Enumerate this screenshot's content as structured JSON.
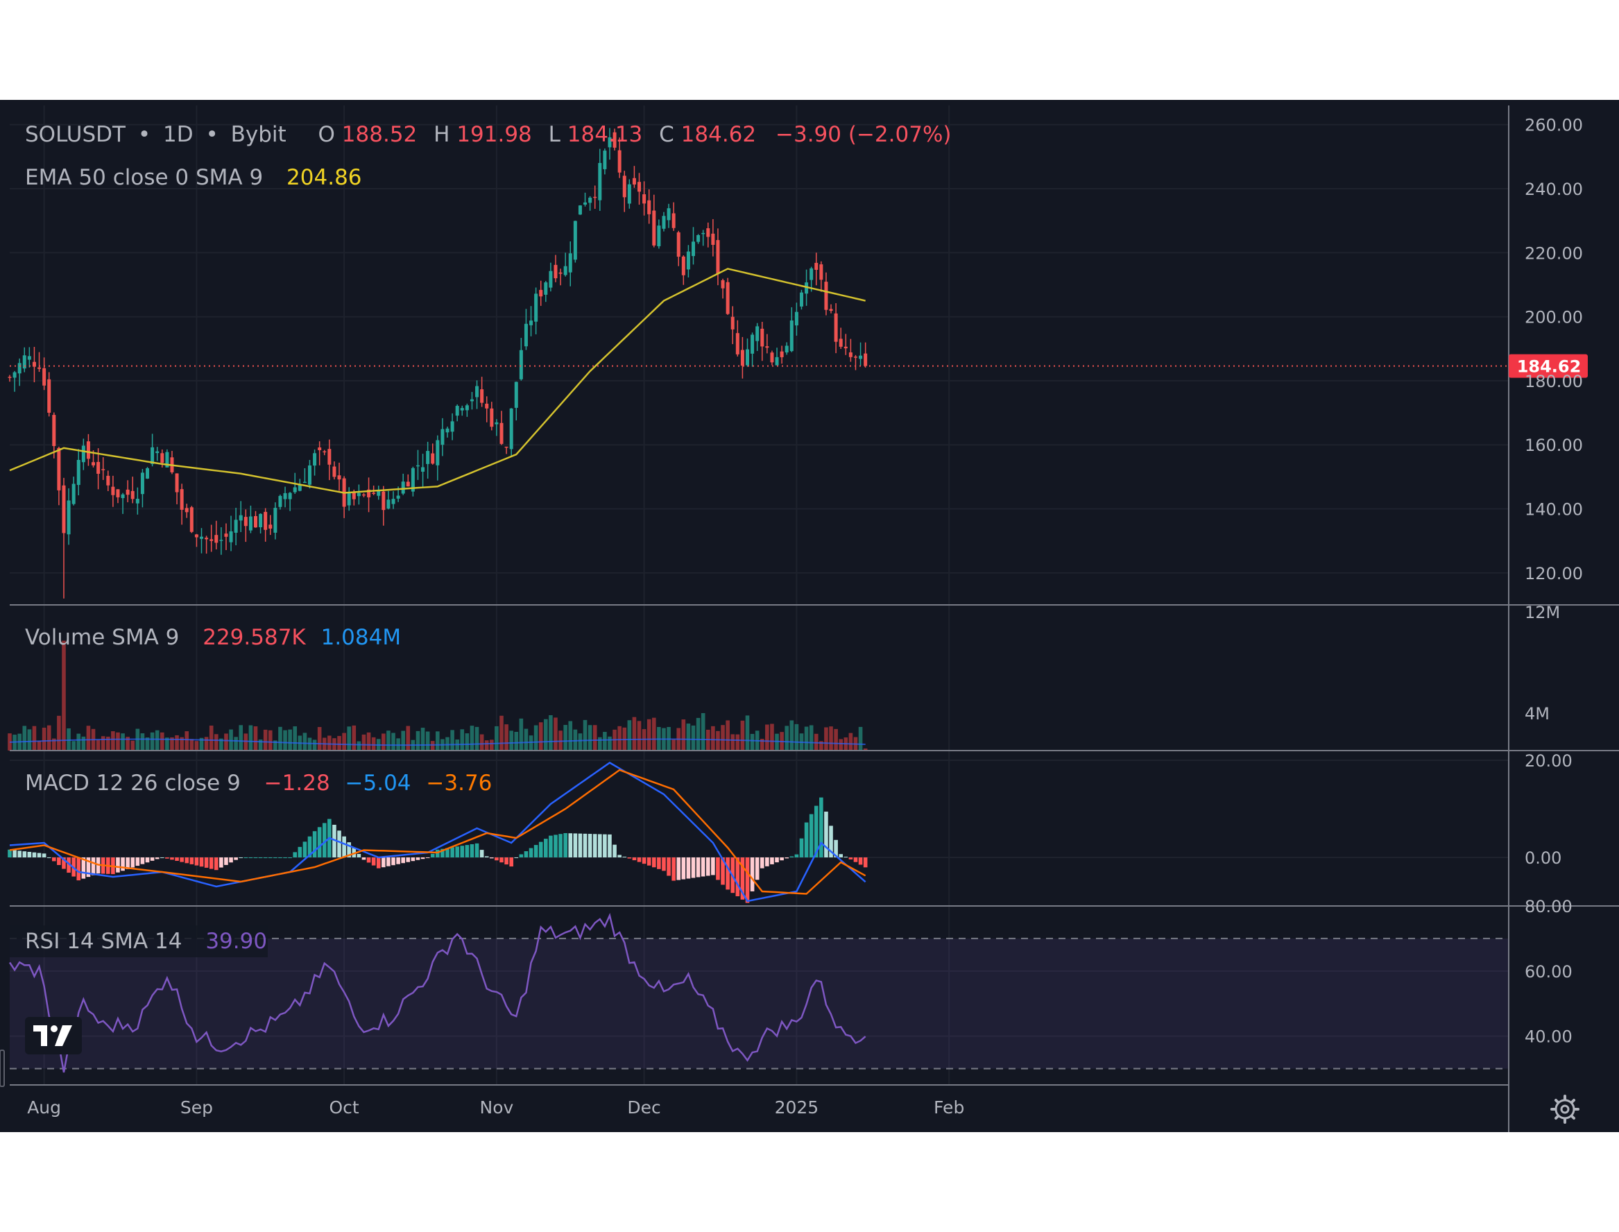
{
  "legend": {
    "symbol": "SOLUSDT",
    "interval": "1D",
    "exchange": "Bybit",
    "dot": "•",
    "o_label": "O",
    "o_value": "188.52",
    "h_label": "H",
    "h_value": "191.98",
    "l_label": "L",
    "l_value": "184.13",
    "c_label": "C",
    "c_value": "184.62",
    "change": "−3.90 (−2.07%)",
    "ema_label": "EMA 50 close 0 SMA 9",
    "ema_value": "204.86"
  },
  "price_badge": "184.62",
  "volume_legend": {
    "label": "Volume SMA 9",
    "value1": "229.587K",
    "value2": "1.084M"
  },
  "macd_legend": {
    "label": "MACD 12 26 close 9",
    "hist": "−1.28",
    "macd": "−5.04",
    "signal": "−3.76"
  },
  "rsi_legend": {
    "label": "RSI 14 SMA 14",
    "value": "39.90"
  },
  "price_axis": [
    "260.00",
    "240.00",
    "220.00",
    "200.00",
    "180.00",
    "160.00",
    "140.00",
    "120.00"
  ],
  "volume_axis": [
    "12M",
    "4M"
  ],
  "macd_axis": [
    "20.00",
    "0.00"
  ],
  "rsi_axis": [
    "80.00",
    "60.00",
    "40.00"
  ],
  "time_axis": [
    "Aug",
    "Sep",
    "Oct",
    "Nov",
    "Dec",
    "2025",
    "Feb"
  ],
  "icons": {
    "logo": "tradingview-logo-icon",
    "settings": "gear-icon"
  },
  "colors": {
    "background": "#131722",
    "up": "#26a69a",
    "down": "#ef5350",
    "ema": "#d4c22e",
    "macd": "#2962ff",
    "signal": "#ff6d00",
    "rsi": "#7e57c2",
    "text": "#b2b5be"
  },
  "chart_data": [
    {
      "type": "candlestick",
      "symbol": "SOLUSDT",
      "interval": "1D",
      "ylim": [
        110,
        266
      ],
      "ohlc_last": {
        "open": 188.52,
        "high": 191.98,
        "low": 184.13,
        "close": 184.62
      },
      "close_series": [
        {
          "date": "2024-07-25",
          "close": 181
        },
        {
          "date": "2024-07-28",
          "close": 187
        },
        {
          "date": "2024-07-31",
          "close": 186
        },
        {
          "date": "2024-08-02",
          "close": 172
        },
        {
          "date": "2024-08-05",
          "close": 134
        },
        {
          "date": "2024-08-08",
          "close": 158
        },
        {
          "date": "2024-08-11",
          "close": 155
        },
        {
          "date": "2024-08-14",
          "close": 147
        },
        {
          "date": "2024-08-17",
          "close": 144
        },
        {
          "date": "2024-08-20",
          "close": 146
        },
        {
          "date": "2024-08-23",
          "close": 159
        },
        {
          "date": "2024-08-26",
          "close": 156
        },
        {
          "date": "2024-08-29",
          "close": 140
        },
        {
          "date": "2024-09-01",
          "close": 133
        },
        {
          "date": "2024-09-04",
          "close": 129
        },
        {
          "date": "2024-09-07",
          "close": 131
        },
        {
          "date": "2024-09-10",
          "close": 138
        },
        {
          "date": "2024-09-13",
          "close": 136
        },
        {
          "date": "2024-09-16",
          "close": 135
        },
        {
          "date": "2024-09-19",
          "close": 145
        },
        {
          "date": "2024-09-22",
          "close": 148
        },
        {
          "date": "2024-09-25",
          "close": 156
        },
        {
          "date": "2024-09-28",
          "close": 156
        },
        {
          "date": "2024-10-01",
          "close": 142
        },
        {
          "date": "2024-10-04",
          "close": 143
        },
        {
          "date": "2024-10-07",
          "close": 145
        },
        {
          "date": "2024-10-10",
          "close": 141
        },
        {
          "date": "2024-10-13",
          "close": 148
        },
        {
          "date": "2024-10-16",
          "close": 154
        },
        {
          "date": "2024-10-19",
          "close": 157
        },
        {
          "date": "2024-10-22",
          "close": 168
        },
        {
          "date": "2024-10-25",
          "close": 174
        },
        {
          "date": "2024-10-28",
          "close": 176
        },
        {
          "date": "2024-10-31",
          "close": 168
        },
        {
          "date": "2024-11-03",
          "close": 160
        },
        {
          "date": "2024-11-06",
          "close": 190
        },
        {
          "date": "2024-11-09",
          "close": 205
        },
        {
          "date": "2024-11-12",
          "close": 215
        },
        {
          "date": "2024-11-15",
          "close": 215
        },
        {
          "date": "2024-11-18",
          "close": 236
        },
        {
          "date": "2024-11-21",
          "close": 240
        },
        {
          "date": "2024-11-24",
          "close": 256
        },
        {
          "date": "2024-11-27",
          "close": 238
        },
        {
          "date": "2024-11-30",
          "close": 240
        },
        {
          "date": "2024-12-03",
          "close": 225
        },
        {
          "date": "2024-12-06",
          "close": 236
        },
        {
          "date": "2024-12-09",
          "close": 214
        },
        {
          "date": "2024-12-12",
          "close": 227
        },
        {
          "date": "2024-12-15",
          "close": 222
        },
        {
          "date": "2024-12-18",
          "close": 198
        },
        {
          "date": "2024-12-21",
          "close": 187
        },
        {
          "date": "2024-12-24",
          "close": 196
        },
        {
          "date": "2024-12-27",
          "close": 187
        },
        {
          "date": "2024-12-30",
          "close": 190
        },
        {
          "date": "2025-01-02",
          "close": 208
        },
        {
          "date": "2025-01-05",
          "close": 216
        },
        {
          "date": "2025-01-07",
          "close": 205
        },
        {
          "date": "2025-01-10",
          "close": 189
        },
        {
          "date": "2025-01-13",
          "close": 186
        },
        {
          "date": "2025-01-15",
          "close": 184.62
        }
      ],
      "ema": [
        {
          "date": "2024-07-25",
          "value": 152
        },
        {
          "date": "2024-08-05",
          "value": 159
        },
        {
          "date": "2024-08-25",
          "value": 154
        },
        {
          "date": "2024-09-10",
          "value": 151
        },
        {
          "date": "2024-10-01",
          "value": 145
        },
        {
          "date": "2024-10-20",
          "value": 147
        },
        {
          "date": "2024-11-05",
          "value": 157
        },
        {
          "date": "2024-11-20",
          "value": 183
        },
        {
          "date": "2024-12-05",
          "value": 205
        },
        {
          "date": "2024-12-18",
          "value": 215
        },
        {
          "date": "2025-01-01",
          "value": 210
        },
        {
          "date": "2025-01-15",
          "value": 205
        }
      ]
    },
    {
      "type": "bar",
      "name": "Volume",
      "ylim": [
        0,
        15000000
      ],
      "sma9": 1084000,
      "last": 229587,
      "peak_date": "2024-08-05",
      "peak_value": 12000000
    },
    {
      "type": "line",
      "name": "MACD 12 26 close 9",
      "ylim": [
        -10,
        22
      ],
      "last": {
        "macd": -5.04,
        "signal": -3.76,
        "histogram": -1.28
      },
      "macd": [
        {
          "date": "2024-07-25",
          "value": 2.5
        },
        {
          "date": "2024-08-01",
          "value": 3
        },
        {
          "date": "2024-08-08",
          "value": -3
        },
        {
          "date": "2024-08-15",
          "value": -4
        },
        {
          "date": "2024-08-25",
          "value": -3
        },
        {
          "date": "2024-09-05",
          "value": -6
        },
        {
          "date": "2024-09-20",
          "value": -3
        },
        {
          "date": "2024-09-28",
          "value": 4
        },
        {
          "date": "2024-10-08",
          "value": 0
        },
        {
          "date": "2024-10-18",
          "value": 1
        },
        {
          "date": "2024-10-28",
          "value": 6
        },
        {
          "date": "2024-11-04",
          "value": 3
        },
        {
          "date": "2024-11-12",
          "value": 11
        },
        {
          "date": "2024-11-24",
          "value": 19.5
        },
        {
          "date": "2024-12-05",
          "value": 13
        },
        {
          "date": "2024-12-15",
          "value": 3
        },
        {
          "date": "2024-12-22",
          "value": -9
        },
        {
          "date": "2025-01-01",
          "value": -7
        },
        {
          "date": "2025-01-06",
          "value": 3
        },
        {
          "date": "2025-01-15",
          "value": -5.04
        }
      ],
      "signal": [
        {
          "date": "2024-07-25",
          "value": 1.5
        },
        {
          "date": "2024-08-01",
          "value": 2.5
        },
        {
          "date": "2024-08-12",
          "value": -1.5
        },
        {
          "date": "2024-08-25",
          "value": -3
        },
        {
          "date": "2024-09-10",
          "value": -5
        },
        {
          "date": "2024-09-25",
          "value": -2
        },
        {
          "date": "2024-10-05",
          "value": 1.5
        },
        {
          "date": "2024-10-20",
          "value": 1
        },
        {
          "date": "2024-10-30",
          "value": 5
        },
        {
          "date": "2024-11-05",
          "value": 4
        },
        {
          "date": "2024-11-15",
          "value": 10
        },
        {
          "date": "2024-11-26",
          "value": 18
        },
        {
          "date": "2024-12-07",
          "value": 14
        },
        {
          "date": "2024-12-18",
          "value": 2
        },
        {
          "date": "2024-12-25",
          "value": -7
        },
        {
          "date": "2025-01-03",
          "value": -7.5
        },
        {
          "date": "2025-01-10",
          "value": -1
        },
        {
          "date": "2025-01-15",
          "value": -3.76
        }
      ]
    },
    {
      "type": "line",
      "name": "RSI 14 SMA 14",
      "ylim": [
        25,
        80
      ],
      "bands": [
        70,
        30
      ],
      "last": 39.9,
      "rsi": [
        {
          "date": "2024-07-25",
          "value": 62
        },
        {
          "date": "2024-07-31",
          "value": 60
        },
        {
          "date": "2024-08-05",
          "value": 30
        },
        {
          "date": "2024-08-09",
          "value": 50
        },
        {
          "date": "2024-08-13",
          "value": 43
        },
        {
          "date": "2024-08-20",
          "value": 44
        },
        {
          "date": "2024-08-26",
          "value": 59
        },
        {
          "date": "2024-09-01",
          "value": 40
        },
        {
          "date": "2024-09-06",
          "value": 37
        },
        {
          "date": "2024-09-14",
          "value": 42
        },
        {
          "date": "2024-09-20",
          "value": 47
        },
        {
          "date": "2024-09-28",
          "value": 62
        },
        {
          "date": "2024-10-04",
          "value": 43
        },
        {
          "date": "2024-10-10",
          "value": 45
        },
        {
          "date": "2024-10-16",
          "value": 55
        },
        {
          "date": "2024-10-24",
          "value": 72
        },
        {
          "date": "2024-10-31",
          "value": 54
        },
        {
          "date": "2024-11-05",
          "value": 45
        },
        {
          "date": "2024-11-10",
          "value": 72
        },
        {
          "date": "2024-11-16",
          "value": 71
        },
        {
          "date": "2024-11-24",
          "value": 76
        },
        {
          "date": "2024-11-29",
          "value": 62
        },
        {
          "date": "2024-12-05",
          "value": 53
        },
        {
          "date": "2024-12-10",
          "value": 57
        },
        {
          "date": "2024-12-15",
          "value": 46
        },
        {
          "date": "2024-12-21",
          "value": 33
        },
        {
          "date": "2024-12-27",
          "value": 42
        },
        {
          "date": "2025-01-01",
          "value": 44
        },
        {
          "date": "2025-01-05",
          "value": 58
        },
        {
          "date": "2025-01-10",
          "value": 41
        },
        {
          "date": "2025-01-15",
          "value": 39.9
        }
      ]
    }
  ]
}
